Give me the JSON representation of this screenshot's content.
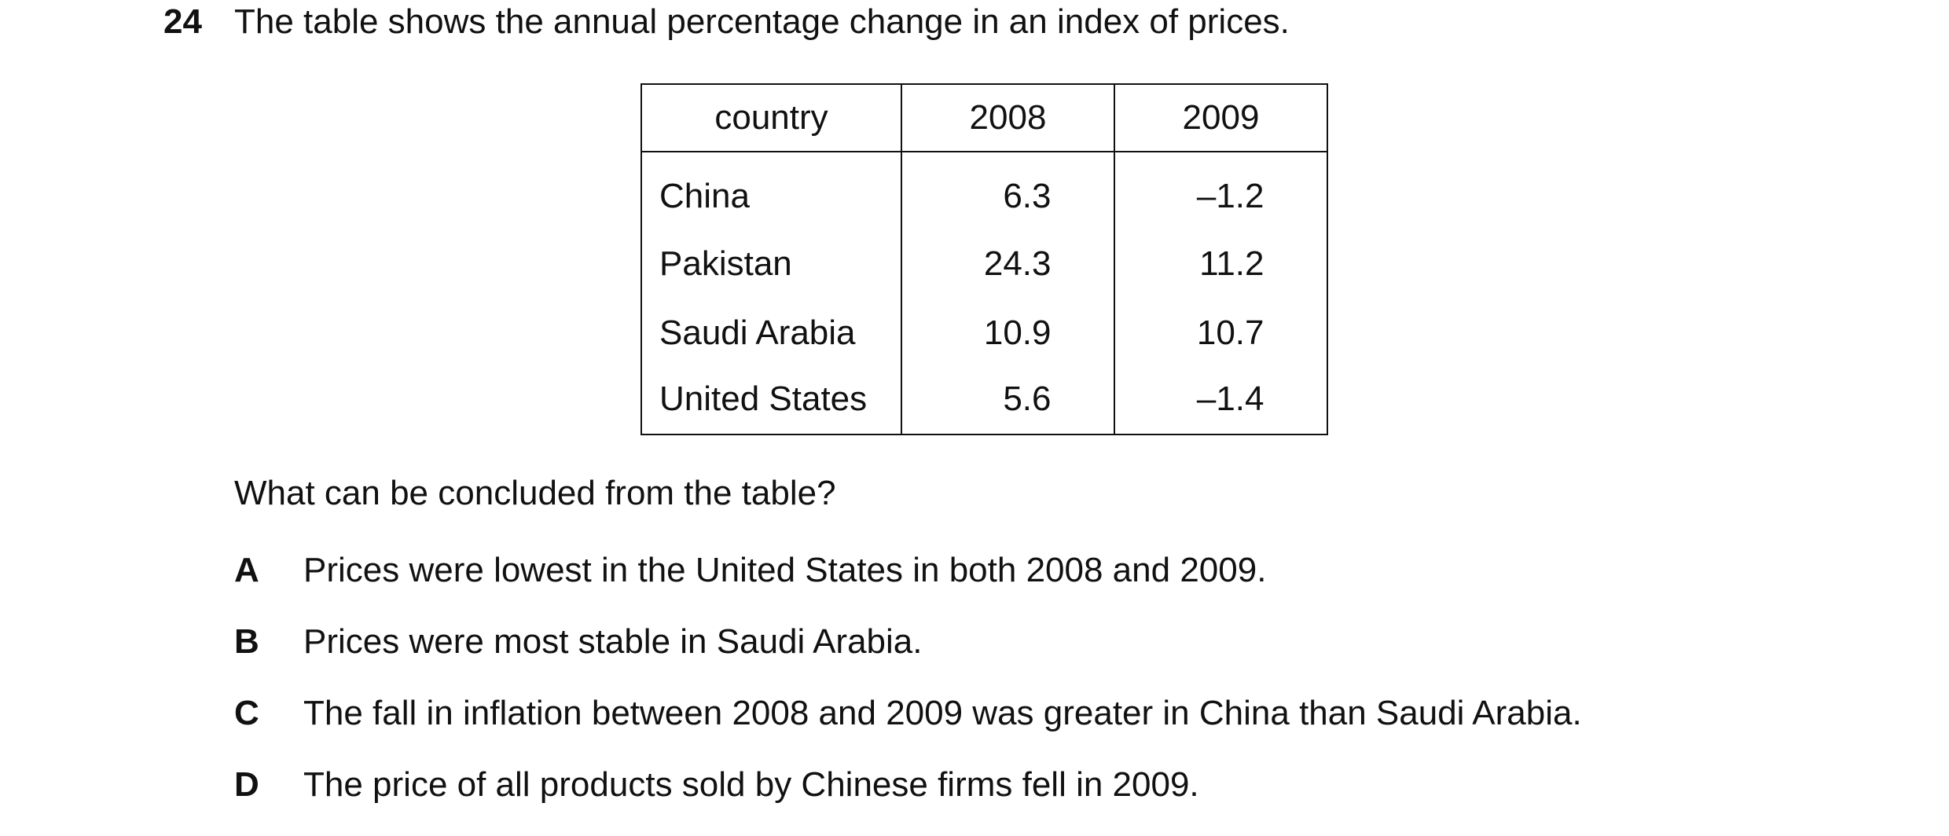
{
  "question": {
    "number": "24",
    "stem": "The table shows the annual percentage change in an index of prices.",
    "prompt": "What can be concluded from the table?"
  },
  "table": {
    "headers": [
      "country",
      "2008",
      "2009"
    ],
    "rows": [
      {
        "country": "China",
        "y2008": "6.3",
        "y2009": "–1.2"
      },
      {
        "country": "Pakistan",
        "y2008": "24.3",
        "y2009": "11.2"
      },
      {
        "country": "Saudi Arabia",
        "y2008": "10.9",
        "y2009": "10.7"
      },
      {
        "country": "United States",
        "y2008": "5.6",
        "y2009": "–1.4"
      }
    ]
  },
  "options": [
    {
      "letter": "A",
      "text": "Prices were lowest in the United States in both 2008 and 2009."
    },
    {
      "letter": "B",
      "text": "Prices were most stable in Saudi Arabia."
    },
    {
      "letter": "C",
      "text": "The fall in inflation between 2008 and 2009 was greater in China than Saudi Arabia."
    },
    {
      "letter": "D",
      "text": "The price of all products sold by Chinese firms fell in 2009."
    }
  ]
}
